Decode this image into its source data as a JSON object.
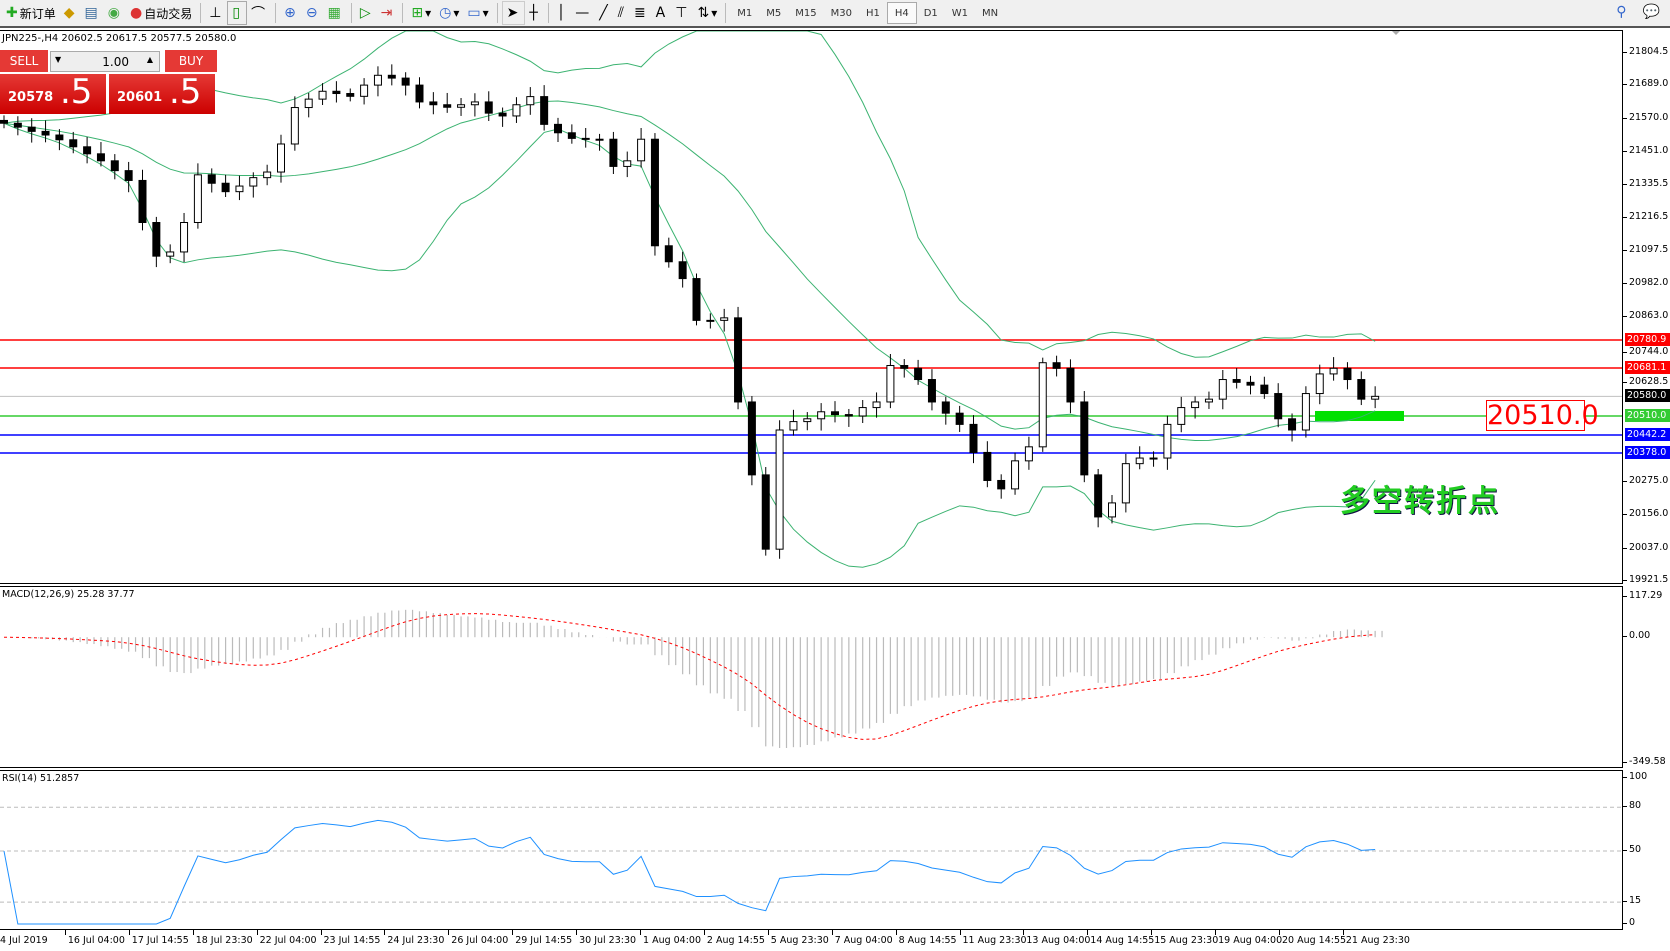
{
  "toolbar": {
    "new_order": "新订单",
    "auto_trading": "自动交易",
    "timeframes": [
      "M1",
      "M5",
      "M15",
      "M30",
      "H1",
      "H4",
      "D1",
      "W1",
      "MN"
    ],
    "active_timeframe": "H4"
  },
  "symbol": {
    "info": "JPN225-,H4  20602.5 20617.5 20577.5 20580.0"
  },
  "trade_panel": {
    "sell": "SELL",
    "buy": "BUY",
    "lot": "1.00",
    "bid_main": "20578",
    "bid_big": ".5",
    "ask_main": "20601",
    "ask_big": ".5"
  },
  "price_axis": [
    "21804.5",
    "21689.0",
    "21570.0",
    "21451.0",
    "21335.5",
    "21216.5",
    "21097.5",
    "20982.0",
    "20863.0",
    "20744.0",
    "20628.5",
    "20275.0",
    "20156.0",
    "20037.0",
    "19921.5"
  ],
  "levels": [
    {
      "price": 20780.9,
      "label": "20780.9",
      "color": "#ff0000"
    },
    {
      "price": 20681.1,
      "label": "20681.1",
      "color": "#ff0000"
    },
    {
      "price": 20580.0,
      "label": "20580.0",
      "color": "#000000",
      "line": "#c0c0c0"
    },
    {
      "price": 20510.0,
      "label": "20510.0",
      "color": "#33cc33"
    },
    {
      "price": 20442.2,
      "label": "20442.2",
      "color": "#0000ff"
    },
    {
      "price": 20378.0,
      "label": "20378.0",
      "color": "#0000ff"
    }
  ],
  "annotation": {
    "price_label": "20510.0",
    "text": "多空转折点",
    "bar_color": "#00e000"
  },
  "macd": {
    "title": "MACD(12,26,9) 25.28 37.77",
    "axis": [
      "117.29",
      "0.00",
      "-349.58"
    ],
    "max": 117.29,
    "min": -349.58
  },
  "rsi": {
    "title": "RSI(14) 51.2857",
    "axis": [
      "100",
      "80",
      "50",
      "15",
      "0"
    ],
    "levels": [
      80,
      50,
      15
    ]
  },
  "time_axis": [
    "4 Jul 2019",
    "16 Jul 04:00",
    "17 Jul 14:55",
    "18 Jul 23:30",
    "22 Jul 04:00",
    "23 Jul 14:55",
    "24 Jul 23:30",
    "26 Jul 04:00",
    "29 Jul 14:55",
    "30 Jul 23:30",
    "1 Aug 04:00",
    "2 Aug 14:55",
    "5 Aug 23:30",
    "7 Aug 04:00",
    "8 Aug 14:55",
    "11 Aug 23:30",
    "13 Aug 04:00",
    "14 Aug 14:55",
    "15 Aug 23:30",
    "19 Aug 04:00",
    "20 Aug 14:55",
    "21 Aug 23:30"
  ],
  "chart_data": {
    "type": "candlestick",
    "ylim": [
      19921.5,
      21804.5
    ],
    "closes": [
      21554,
      21540,
      21525,
      21512,
      21495,
      21470,
      21445,
      21420,
      21385,
      21350,
      21200,
      21080,
      21095,
      21200,
      21370,
      21340,
      21310,
      21330,
      21360,
      21380,
      21480,
      21610,
      21640,
      21668,
      21660,
      21650,
      21690,
      21725,
      21715,
      21690,
      21630,
      21620,
      21611,
      21620,
      21630,
      21590,
      21580,
      21620,
      21649,
      21550,
      21520,
      21500,
      21497,
      21497,
      21400,
      21420,
      21497,
      21117,
      21060,
      21000,
      20851,
      20851,
      20860,
      20560,
      20300,
      20035,
      20460,
      20490,
      20500,
      20525,
      20515,
      20510,
      20540,
      20560,
      20690,
      20680,
      20640,
      20560,
      20520,
      20480,
      20380,
      20280,
      20250,
      20350,
      20400,
      20700,
      20680,
      20560,
      20300,
      20150,
      20200,
      20340,
      20360,
      20360,
      20480,
      20540,
      20560,
      20570,
      20640,
      20630,
      20620,
      20590,
      20500,
      20460,
      20590,
      20660,
      20680,
      20640,
      20570,
      20580
    ],
    "indicators": [
      "Bollinger Bands",
      "MACD(12,26,9)",
      "RSI(14)"
    ]
  }
}
